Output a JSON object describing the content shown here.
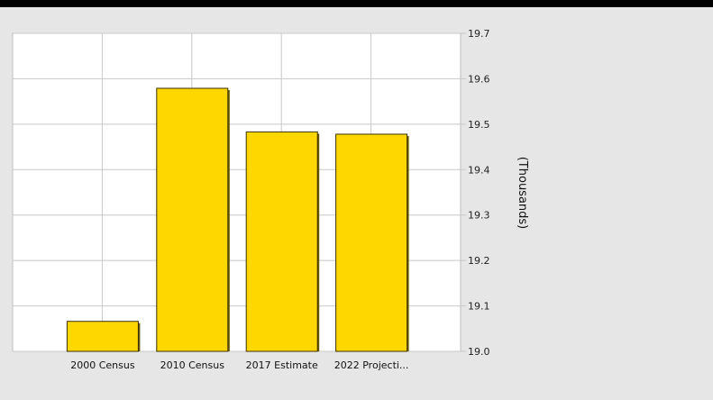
{
  "chart_data": {
    "type": "bar",
    "categories": [
      "2000 Census",
      "2010 Census",
      "2017 Estimate",
      "2022 Projecti..."
    ],
    "values": [
      19.066,
      19.579,
      19.483,
      19.478
    ],
    "ylabel": "(Thousands)",
    "ylim": [
      19.0,
      19.7
    ],
    "yticks": [
      "19.7",
      "19.6",
      "19.5",
      "19.4",
      "19.3",
      "19.2",
      "19.1",
      "19.0"
    ],
    "y_axis_side": "right",
    "grid": true,
    "colors": {
      "bar": "#ffd700",
      "bar_border": "#3a3000",
      "bar_shadow": "#6b5a00",
      "grid": "#c8c8c8",
      "plot_bg": "#ffffff",
      "panel_bg": "#e6e6e6"
    }
  }
}
